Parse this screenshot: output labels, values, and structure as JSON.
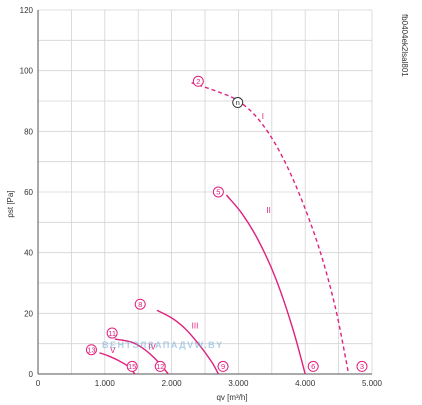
{
  "chart_data": {
    "type": "line",
    "title": "",
    "xlabel": "qv [m³/h]",
    "ylabel": "pst [Pa]",
    "xlim": [
      0,
      5000
    ],
    "ylim": [
      0,
      120
    ],
    "x_ticks": [
      0,
      1000,
      2000,
      3000,
      4000,
      5000
    ],
    "x_tick_labels": [
      "0",
      "1.000",
      "2.000",
      "3.000",
      "4.000",
      "5.000"
    ],
    "y_ticks": [
      0,
      20,
      40,
      60,
      80,
      100,
      120
    ],
    "y_tick_labels": [
      "0",
      "20",
      "40",
      "60",
      "80",
      "100",
      "120"
    ],
    "grid": true,
    "doc_code": "fb0404ek2lsal801",
    "watermark": "ВЕНТЭЛЗАПАДVW.BY",
    "colors": {
      "curve": "#e0217e",
      "grid": "#d4d4d4",
      "axis": "#555555",
      "watermark": "#6fa8d6"
    },
    "series": [
      {
        "name": "I",
        "style": "dashed",
        "x": [
          2300,
          2700,
          3000,
          3300,
          3600,
          3900,
          4200,
          4450,
          4650
        ],
        "y": [
          96,
          93,
          90,
          84,
          74,
          60,
          42,
          22,
          0
        ]
      },
      {
        "name": "II",
        "style": "solid",
        "x": [
          2820,
          3050,
          3300,
          3550,
          3800,
          4000
        ],
        "y": [
          59,
          53,
          44,
          32,
          16,
          0
        ]
      },
      {
        "name": "III",
        "style": "solid",
        "x": [
          1780,
          2000,
          2200,
          2400,
          2600,
          2700
        ],
        "y": [
          21,
          18.5,
          15,
          10,
          4,
          0
        ]
      },
      {
        "name": "IV",
        "style": "solid",
        "x": [
          1150,
          1400,
          1600,
          1800,
          1950
        ],
        "y": [
          11.5,
          10.5,
          8,
          4,
          0
        ]
      },
      {
        "name": "V",
        "style": "solid",
        "x": [
          920,
          1050,
          1200,
          1350,
          1450
        ],
        "y": [
          7,
          6,
          4.5,
          2.5,
          0
        ]
      }
    ],
    "curve_labels": [
      {
        "text": "I",
        "x": 3350,
        "y": 84
      },
      {
        "text": "II",
        "x": 3420,
        "y": 53
      },
      {
        "text": "III",
        "x": 2300,
        "y": 15
      },
      {
        "text": "IV",
        "x": 1650,
        "y": 8
      },
      {
        "text": "V",
        "x": 1080,
        "y": 7
      }
    ],
    "markers": [
      {
        "label": "2",
        "x": 2400,
        "y": 96.5
      },
      {
        "label": "n",
        "x": 2990,
        "y": 89.5,
        "style": "black"
      },
      {
        "label": "3",
        "x": 4850,
        "y": 2.5
      },
      {
        "label": "5",
        "x": 2700,
        "y": 60
      },
      {
        "label": "6",
        "x": 4120,
        "y": 2.5
      },
      {
        "label": "8",
        "x": 1530,
        "y": 23
      },
      {
        "label": "9",
        "x": 2770,
        "y": 2.5
      },
      {
        "label": "11",
        "x": 1110,
        "y": 13.5
      },
      {
        "label": "12",
        "x": 1830,
        "y": 2.5
      },
      {
        "label": "13",
        "x": 800,
        "y": 8
      },
      {
        "label": "15",
        "x": 1410,
        "y": 2.5
      }
    ]
  }
}
